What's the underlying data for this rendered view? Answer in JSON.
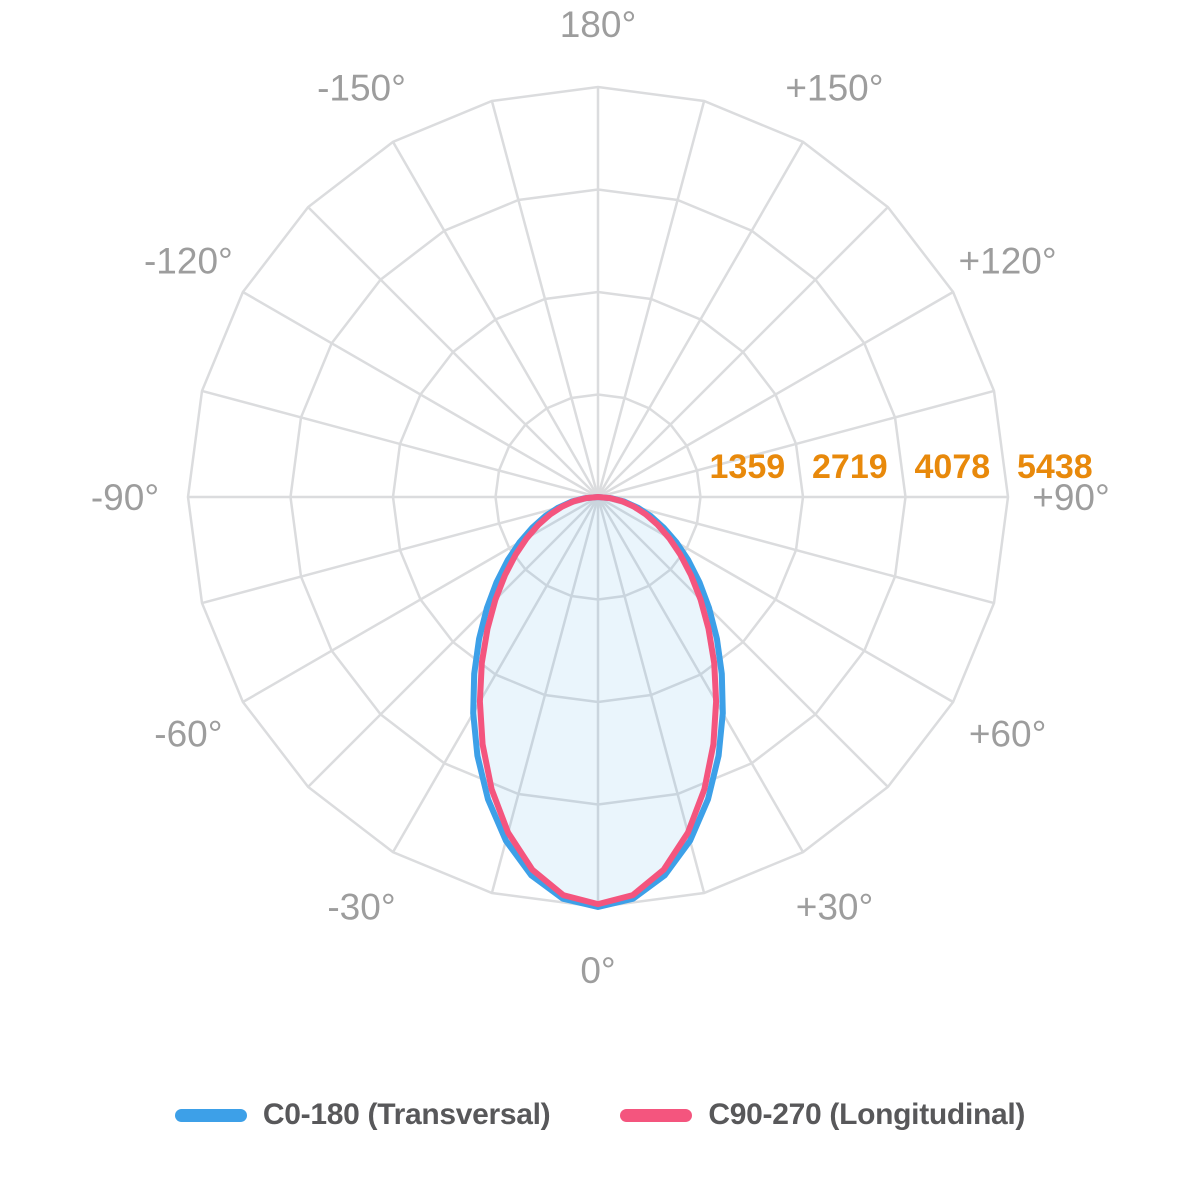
{
  "chart_data": {
    "type": "polar",
    "variant": "photometric-light-distribution",
    "background": "#FFFFFF",
    "grid": {
      "shape": "polygon",
      "spoke_step_deg": 15,
      "color": "#DBDCDE",
      "line_width": 2.5
    },
    "orientation": {
      "zero_deg_at": "bottom",
      "positive_side": "right",
      "top_label": "180°"
    },
    "angle_labels": [
      {
        "angle": 0,
        "label": "0°"
      },
      {
        "angle": 30,
        "label": "+30°"
      },
      {
        "angle": 60,
        "label": "+60°"
      },
      {
        "angle": 90,
        "label": "+90°"
      },
      {
        "angle": 120,
        "label": "+120°"
      },
      {
        "angle": 150,
        "label": "+150°"
      },
      {
        "angle": 180,
        "label": "180°"
      },
      {
        "angle": -150,
        "label": "-150°"
      },
      {
        "angle": -120,
        "label": "-120°"
      },
      {
        "angle": -90,
        "label": "-90°"
      },
      {
        "angle": -60,
        "label": "-60°"
      },
      {
        "angle": -30,
        "label": "-30°"
      }
    ],
    "angle_label_color": "#9D9D9D",
    "radial_axis": {
      "tick_values": [
        1359,
        2719,
        4078,
        5438
      ],
      "max": 5438,
      "tick_label_color": "#E8890B"
    },
    "series": [
      {
        "name": "C0-180 (Transversal)",
        "color": "#3DA0E8",
        "fill": "rgba(61,160,232,0.11)",
        "line_width": 6,
        "angles": [
          -90,
          -85,
          -80,
          -75,
          -70,
          -65,
          -60,
          -55,
          -50,
          -45,
          -40,
          -35,
          -30,
          -25,
          -20,
          -15,
          -10,
          -5,
          0,
          5,
          10,
          15,
          20,
          25,
          30,
          35,
          40,
          45,
          50,
          55,
          60,
          65,
          70,
          75,
          80,
          85,
          90
        ],
        "values": [
          0,
          177,
          358,
          546,
          746,
          962,
          1199,
          1462,
          1755,
          2084,
          2453,
          2863,
          3311,
          3786,
          4267,
          4719,
          5095,
          5348,
          5438,
          5348,
          5095,
          4719,
          4267,
          3786,
          3311,
          2863,
          2453,
          2084,
          1755,
          1462,
          1199,
          962,
          746,
          546,
          358,
          177,
          0
        ]
      },
      {
        "name": "C90-270 (Longitudinal)",
        "color": "#F4557E",
        "fill": "none",
        "line_width": 6,
        "angles": [
          -90,
          -85,
          -80,
          -75,
          -70,
          -65,
          -60,
          -55,
          -50,
          -45,
          -40,
          -35,
          -30,
          -25,
          -20,
          -15,
          -10,
          -5,
          0,
          5,
          10,
          15,
          20,
          25,
          30,
          35,
          40,
          45,
          50,
          55,
          60,
          65,
          70,
          75,
          80,
          85,
          90
        ],
        "values": [
          0,
          160,
          322,
          493,
          675,
          872,
          1091,
          1335,
          1611,
          1925,
          2281,
          2686,
          3134,
          3621,
          4125,
          4609,
          5020,
          5300,
          5400,
          5300,
          5020,
          4609,
          4125,
          3621,
          3134,
          2686,
          2281,
          1925,
          1611,
          1335,
          1091,
          872,
          675,
          493,
          322,
          160,
          0
        ]
      }
    ],
    "legend": {
      "position": "bottom",
      "text_color": "#58585A",
      "items": [
        {
          "label": "C0-180 (Transversal)"
        },
        {
          "label": "C90-270 (Longitudinal)"
        }
      ]
    }
  }
}
